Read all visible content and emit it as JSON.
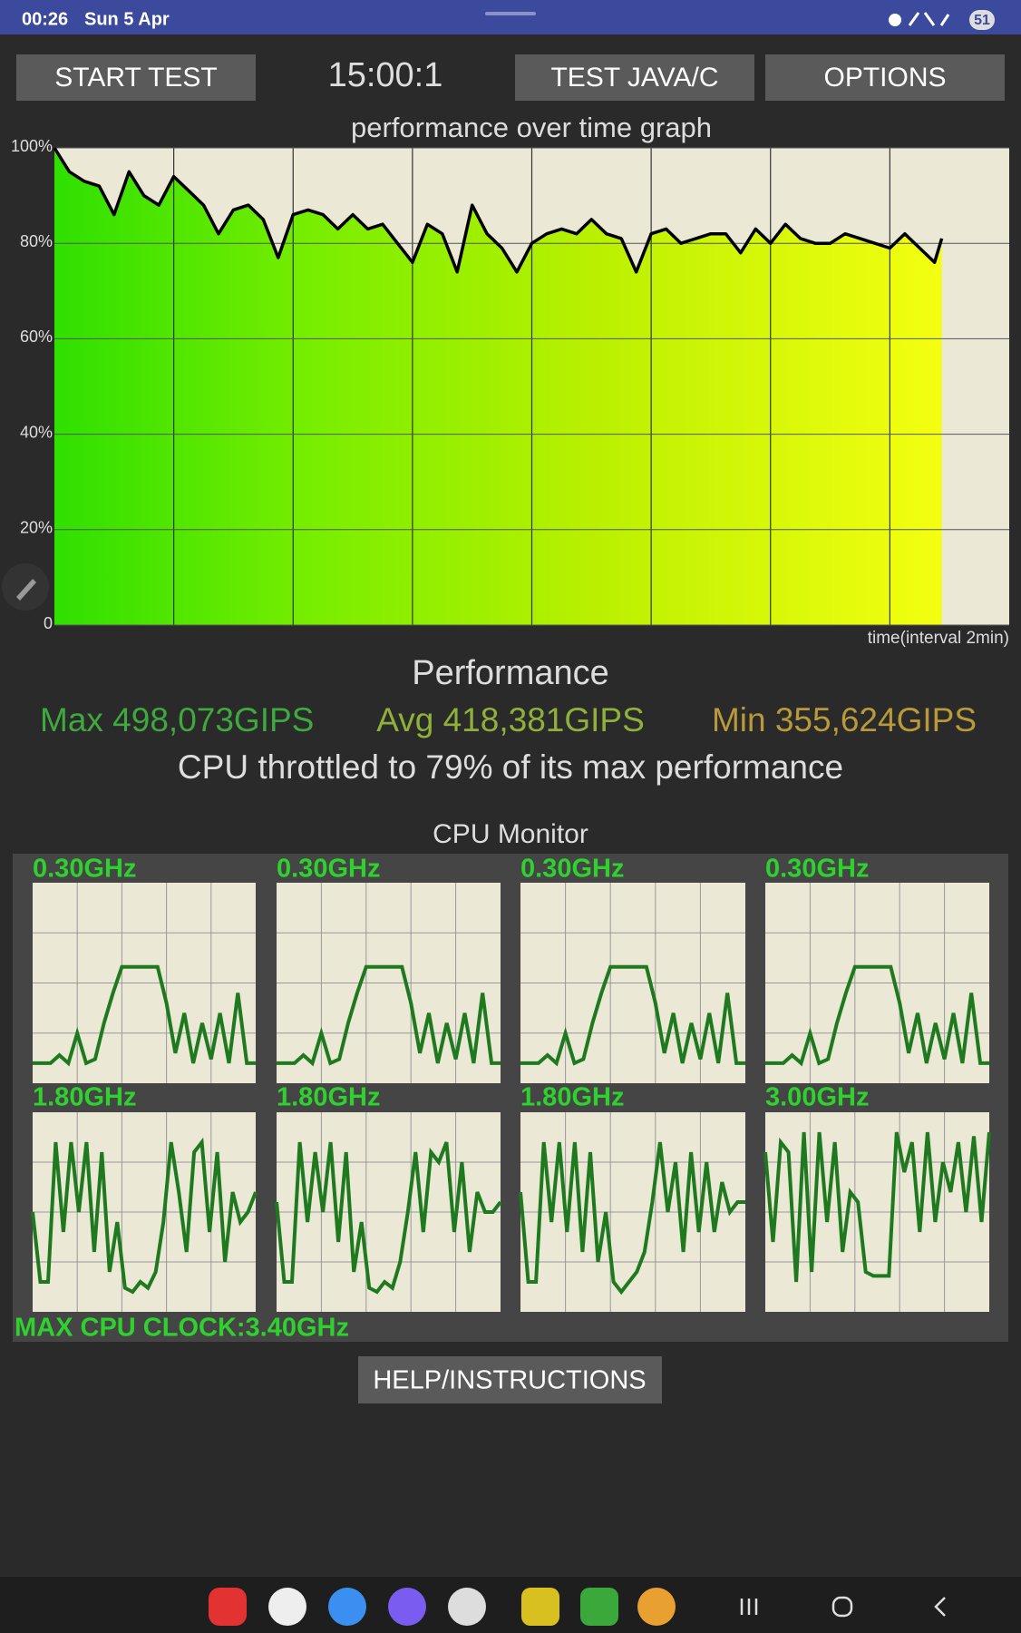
{
  "status_bar": {
    "time": "00:26",
    "date": "Sun 5 Apr",
    "battery": "51"
  },
  "buttons": {
    "start": "START TEST",
    "timer": "15:00:1",
    "test": "TEST JAVA/C",
    "options": "OPTIONS",
    "help": "HELP/INSTRUCTIONS"
  },
  "performance": {
    "title": "Performance",
    "max": "Max 498,073GIPS",
    "avg": "Avg 418,381GIPS",
    "min": "Min 355,624GIPS",
    "throttle": "CPU throttled to 79% of its max performance"
  },
  "cpu_monitor": {
    "title": "CPU Monitor",
    "max_clock": "MAX CPU CLOCK:3.40GHz"
  },
  "chart_data": [
    {
      "type": "line",
      "title": "performance over time graph",
      "x_label": "time(interval 2min)",
      "color": "#000000",
      "grid": true,
      "xlim": [
        0,
        16
      ],
      "ylim": [
        0,
        100
      ],
      "yticks": [
        0,
        {
          "value": 20,
          "label": "20%"
        },
        {
          "value": 40,
          "label": "40%"
        },
        {
          "value": 60,
          "label": "60%"
        },
        {
          "value": 80,
          "label": "80%"
        },
        {
          "value": 100,
          "label": "100%"
        }
      ],
      "x": [
        0,
        0.25,
        0.5,
        0.75,
        1,
        1.25,
        1.5,
        1.75,
        2,
        2.25,
        2.5,
        2.75,
        3,
        3.25,
        3.5,
        3.75,
        4,
        4.25,
        4.5,
        4.75,
        5,
        5.25,
        5.5,
        5.75,
        6,
        6.25,
        6.5,
        6.75,
        7,
        7.25,
        7.5,
        7.75,
        8,
        8.25,
        8.5,
        8.75,
        9,
        9.25,
        9.5,
        9.75,
        10,
        10.25,
        10.5,
        10.75,
        11,
        11.25,
        11.5,
        11.75,
        12,
        12.25,
        12.5,
        12.75,
        13,
        13.25,
        13.5,
        13.75,
        14,
        14.25,
        14.5,
        14.75,
        14.87
      ],
      "values": [
        100,
        95,
        93,
        92,
        86,
        95,
        90,
        88,
        94,
        91,
        88,
        82,
        87,
        88,
        85,
        77,
        86,
        87,
        86,
        83,
        86,
        83,
        84,
        80,
        76,
        84,
        82,
        74,
        88,
        82,
        79,
        74,
        80,
        82,
        83,
        82,
        85,
        82,
        81,
        74,
        82,
        83,
        80,
        81,
        82,
        82,
        78,
        83,
        80,
        84,
        81,
        80,
        80,
        82,
        81,
        80,
        79,
        82,
        79,
        76,
        81
      ]
    },
    {
      "type": "line",
      "title": "0.30GHz",
      "color": "#1f7a1f",
      "ylim": [
        0,
        100
      ],
      "values": [
        10,
        10,
        10,
        14,
        10,
        25,
        10,
        12,
        30,
        45,
        58,
        58,
        58,
        58,
        58,
        40,
        15,
        35,
        10,
        30,
        12,
        35,
        10,
        45,
        10,
        10
      ]
    },
    {
      "type": "line",
      "title": "0.30GHz",
      "color": "#1f7a1f",
      "ylim": [
        0,
        100
      ],
      "values": [
        10,
        10,
        10,
        14,
        10,
        25,
        10,
        12,
        30,
        45,
        58,
        58,
        58,
        58,
        58,
        40,
        15,
        35,
        10,
        30,
        12,
        35,
        10,
        45,
        10,
        10
      ]
    },
    {
      "type": "line",
      "title": "0.30GHz",
      "color": "#1f7a1f",
      "ylim": [
        0,
        100
      ],
      "values": [
        10,
        10,
        10,
        14,
        10,
        25,
        10,
        12,
        30,
        45,
        58,
        58,
        58,
        58,
        58,
        40,
        15,
        35,
        10,
        30,
        12,
        35,
        10,
        45,
        10,
        10
      ]
    },
    {
      "type": "line",
      "title": "0.30GHz",
      "color": "#1f7a1f",
      "ylim": [
        0,
        100
      ],
      "values": [
        10,
        10,
        10,
        14,
        10,
        25,
        10,
        12,
        30,
        45,
        58,
        58,
        58,
        58,
        58,
        40,
        15,
        35,
        10,
        30,
        12,
        35,
        10,
        45,
        10,
        10
      ]
    },
    {
      "type": "line",
      "title": "1.80GHz",
      "color": "#1f7a1f",
      "ylim": [
        0,
        100
      ],
      "values": [
        50,
        15,
        15,
        85,
        40,
        85,
        50,
        85,
        30,
        80,
        20,
        45,
        12,
        10,
        15,
        12,
        20,
        45,
        85,
        60,
        30,
        80,
        85,
        40,
        80,
        25,
        60,
        45,
        50,
        60
      ]
    },
    {
      "type": "line",
      "title": "1.80GHz",
      "color": "#1f7a1f",
      "ylim": [
        0,
        100
      ],
      "values": [
        55,
        15,
        15,
        85,
        45,
        80,
        50,
        85,
        35,
        80,
        20,
        45,
        12,
        10,
        15,
        12,
        25,
        50,
        80,
        40,
        80,
        75,
        85,
        40,
        75,
        30,
        60,
        50,
        50,
        55
      ]
    },
    {
      "type": "line",
      "title": "1.80GHz",
      "color": "#1f7a1f",
      "ylim": [
        0,
        100
      ],
      "values": [
        60,
        15,
        15,
        85,
        45,
        85,
        40,
        85,
        30,
        80,
        25,
        50,
        15,
        10,
        15,
        20,
        30,
        55,
        85,
        50,
        75,
        30,
        80,
        40,
        75,
        40,
        65,
        50,
        55,
        55
      ]
    },
    {
      "type": "line",
      "title": "3.00GHz",
      "color": "#1f7a1f",
      "ylim": [
        0,
        100
      ],
      "values": [
        80,
        35,
        85,
        80,
        15,
        90,
        20,
        90,
        45,
        85,
        30,
        60,
        55,
        20,
        18,
        18,
        18,
        90,
        70,
        85,
        40,
        90,
        45,
        75,
        60,
        85,
        50,
        88,
        45,
        90
      ]
    }
  ]
}
